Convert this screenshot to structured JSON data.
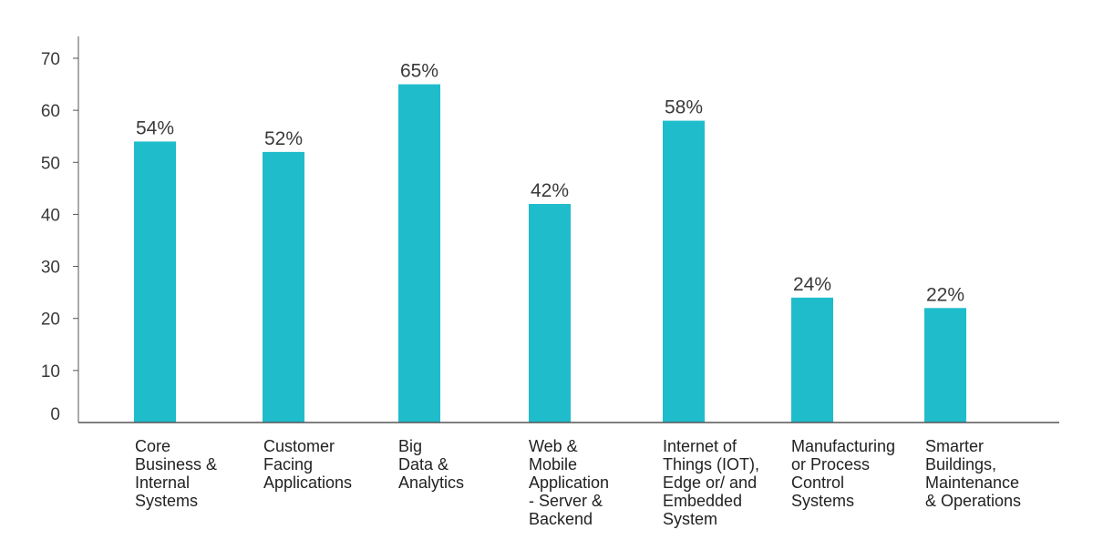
{
  "colors": {
    "bar": "#1fbccc",
    "axis": "#555555",
    "text": "#3a3a3a"
  },
  "chart_data": {
    "type": "bar",
    "title": "",
    "xlabel": "",
    "ylabel": "",
    "ylim": [
      0,
      70
    ],
    "yticks": [
      0,
      10,
      20,
      30,
      40,
      50,
      60,
      70
    ],
    "grid": false,
    "categories": [
      [
        "Core",
        "Business &",
        "Internal",
        "Systems"
      ],
      [
        "Customer",
        "Facing",
        "Applications"
      ],
      [
        "Big",
        "Data &",
        "Analytics"
      ],
      [
        "Web &",
        "Mobile",
        "Application",
        "- Server &",
        "Backend"
      ],
      [
        "Internet of",
        "Things (IOT),",
        "Edge or/ and",
        "Embedded",
        "System"
      ],
      [
        "Manufacturing",
        "or Process",
        "Control",
        "Systems"
      ],
      [
        "Smarter",
        "Buildings,",
        "Maintenance",
        "& Operations"
      ]
    ],
    "values": [
      54,
      52,
      65,
      42,
      58,
      24,
      22
    ],
    "data_labels": [
      "54%",
      "52%",
      "65%",
      "42%",
      "58%",
      "24%",
      "22%"
    ]
  }
}
